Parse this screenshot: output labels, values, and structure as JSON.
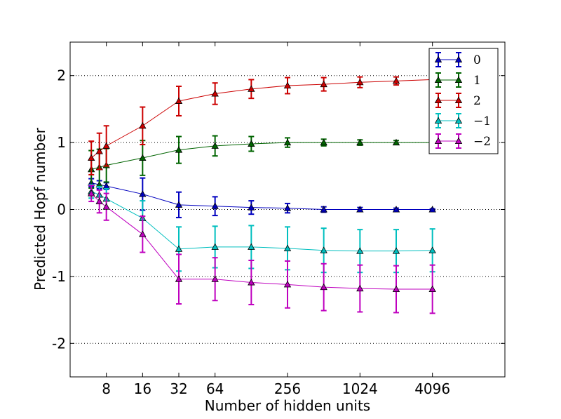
{
  "chart_data": {
    "type": "line",
    "title": "",
    "xlabel": "Number of hidden units",
    "ylabel": "Predicted Hopf number",
    "xscale": "log2",
    "xlim": [
      4,
      16384
    ],
    "ylim": [
      -2.5,
      2.5
    ],
    "x": [
      6,
      7,
      8,
      16,
      32,
      64,
      128,
      256,
      512,
      1024,
      2048,
      4096
    ],
    "xticks": [
      8,
      16,
      32,
      64,
      256,
      1024,
      4096
    ],
    "xtick_labels": [
      "8",
      "16",
      "32",
      "64",
      "256",
      "1024",
      "4096"
    ],
    "yticks": [
      -2,
      -1,
      0,
      1,
      2
    ],
    "ytick_labels": [
      "-2",
      "-1",
      "0",
      "1",
      "2"
    ],
    "grid": "y-dotted",
    "legend_position": "top-right",
    "series": [
      {
        "name": "0",
        "color": "#0000bf",
        "values": [
          0.4,
          0.37,
          0.35,
          0.23,
          0.07,
          0.05,
          0.03,
          0.02,
          0.0,
          0.0,
          0.0,
          0.0
        ],
        "errors": [
          0.06,
          0.06,
          0.05,
          0.24,
          0.19,
          0.14,
          0.1,
          0.07,
          0.04,
          0.03,
          0.02,
          0.01
        ]
      },
      {
        "name": "1",
        "color": "#006400",
        "values": [
          0.6,
          0.63,
          0.66,
          0.77,
          0.89,
          0.95,
          0.98,
          1.0,
          1.0,
          1.0,
          1.0,
          1.0
        ],
        "errors": [
          0.28,
          0.27,
          0.25,
          0.26,
          0.2,
          0.15,
          0.11,
          0.07,
          0.05,
          0.04,
          0.03,
          0.02
        ]
      },
      {
        "name": "2",
        "color": "#cc0000",
        "values": [
          0.77,
          0.87,
          0.95,
          1.25,
          1.62,
          1.73,
          1.8,
          1.85,
          1.87,
          1.9,
          1.92,
          1.94
        ],
        "errors": [
          0.25,
          0.27,
          0.3,
          0.28,
          0.22,
          0.16,
          0.14,
          0.12,
          0.1,
          0.08,
          0.06,
          0.05
        ]
      },
      {
        "name": "−1",
        "color": "#00bfbf",
        "values": [
          0.27,
          0.22,
          0.16,
          -0.13,
          -0.59,
          -0.56,
          -0.56,
          -0.58,
          -0.61,
          -0.62,
          -0.62,
          -0.61
        ],
        "errors": [
          0.1,
          0.12,
          0.15,
          0.26,
          0.33,
          0.31,
          0.32,
          0.32,
          0.33,
          0.32,
          0.32,
          0.32
        ]
      },
      {
        "name": "−2",
        "color": "#bf00bf",
        "values": [
          0.24,
          0.12,
          0.04,
          -0.37,
          -1.04,
          -1.04,
          -1.09,
          -1.12,
          -1.16,
          -1.18,
          -1.19,
          -1.19
        ],
        "errors": [
          0.12,
          0.17,
          0.2,
          0.27,
          0.37,
          0.32,
          0.33,
          0.35,
          0.35,
          0.35,
          0.35,
          0.36
        ]
      }
    ]
  }
}
